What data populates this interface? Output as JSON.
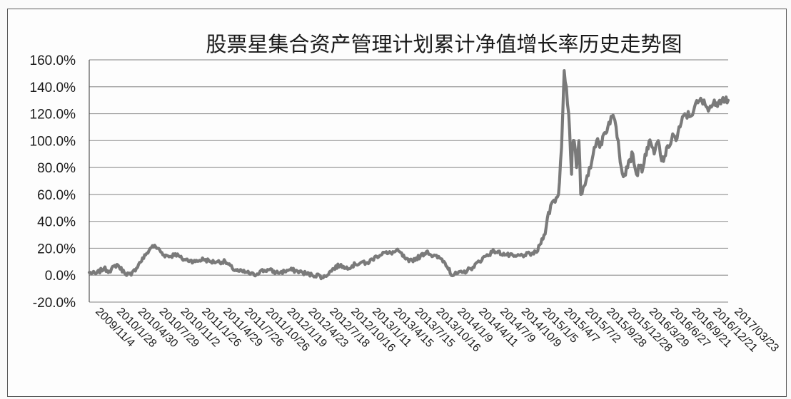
{
  "chart_data": {
    "type": "line",
    "title": "股票星集合资产管理计划累计净值增长率历史走势图",
    "xlabel": "",
    "ylabel": "",
    "ylim": [
      -20,
      160
    ],
    "y_unit": "%",
    "y_ticks": [
      "-20.0%",
      "0.0%",
      "20.0%",
      "40.0%",
      "60.0%",
      "80.0%",
      "100.0%",
      "120.0%",
      "140.0%",
      "160.0%"
    ],
    "x_ticks": [
      "2009/11/4",
      "2010/1/28",
      "2010/4/30",
      "2010/7/29",
      "2010/11/2",
      "2011/1/26",
      "2011/4/29",
      "2011/7/26",
      "2011/10/26",
      "2012/1/19",
      "2012/4/23",
      "2012/7/18",
      "2012/10/16",
      "2013/1/11",
      "2013/4/15",
      "2013/7/15",
      "2013/10/16",
      "2014/1/9",
      "2014/4/11",
      "2014/7/9",
      "2014/10/9",
      "2015/1/5",
      "2015/4/7",
      "2015/7/2",
      "2015/9/28",
      "2015/12/28",
      "2016/3/29",
      "2016/6/27",
      "2016/9/21",
      "2016/12/21",
      "2017/03/23"
    ],
    "grid": true,
    "legend": "none",
    "colors": {
      "line": "#7a7a7a",
      "grid": "#9a9a9a",
      "axis": "#555555",
      "text": "#1a1a1a"
    },
    "series": [
      {
        "x": [
          "2009/11/4",
          "2009/12/1",
          "2010/1/5",
          "2010/1/28",
          "2010/3/1",
          "2010/4/1",
          "2010/4/30",
          "2010/5/31",
          "2010/6/30",
          "2010/7/29",
          "2010/8/20",
          "2010/9/15",
          "2010/10/15",
          "2010/11/2",
          "2010/12/1",
          "2011/1/4",
          "2011/1/26",
          "2011/3/1",
          "2011/4/1",
          "2011/4/29",
          "2011/6/1",
          "2011/7/1",
          "2011/7/26",
          "2011/9/1",
          "2011/10/1",
          "2011/10/26",
          "2011/12/1",
          "2012/1/1",
          "2012/1/19",
          "2012/3/1",
          "2012/4/1",
          "2012/4/23",
          "2012/6/1",
          "2012/7/1",
          "2012/7/18",
          "2012/9/1",
          "2012/10/1",
          "2012/10/16",
          "2012/12/1",
          "2013/1/1",
          "2013/1/11",
          "2013/3/1",
          "2013/4/1",
          "2013/4/15",
          "2013/6/1",
          "2013/7/1",
          "2013/7/15",
          "2013/9/1",
          "2013/10/1",
          "2013/10/16",
          "2013/12/1",
          "2014/1/1",
          "2014/1/9",
          "2014/3/1",
          "2014/4/1",
          "2014/4/11",
          "2014/6/1",
          "2014/7/1",
          "2014/7/9",
          "2014/9/1",
          "2014/10/1",
          "2014/10/9",
          "2014/11/15",
          "2014/12/15",
          "2015/1/5",
          "2015/2/5",
          "2015/3/5",
          "2015/4/7",
          "2015/4/20",
          "2015/5/1",
          "2015/5/10",
          "2015/5/20",
          "2015/6/1",
          "2015/6/5",
          "2015/6/12",
          "2015/6/22",
          "2015/7/2",
          "2015/7/10",
          "2015/7/20",
          "2015/8/1",
          "2015/8/15",
          "2015/8/26",
          "2015/9/5",
          "2015/9/15",
          "2015/9/28",
          "2015/10/15",
          "2015/11/1",
          "2015/11/15",
          "2015/12/1",
          "2015/12/15",
          "2015/12/28",
          "2016/1/10",
          "2016/1/28",
          "2016/2/15",
          "2016/3/1",
          "2016/3/15",
          "2016/3/29",
          "2016/4/15",
          "2016/5/1",
          "2016/5/15",
          "2016/6/1",
          "2016/6/15",
          "2016/6/27",
          "2016/7/15",
          "2016/8/1",
          "2016/8/15",
          "2016/9/1",
          "2016/9/21",
          "2016/10/15",
          "2016/11/1",
          "2016/11/15",
          "2016/12/1",
          "2016/12/21",
          "2017/1/15",
          "2017/2/1",
          "2017/2/15",
          "2017/03/01",
          "2017/03/23"
        ],
        "values": [
          2,
          1,
          5,
          3,
          8,
          2,
          0,
          8,
          15,
          22,
          20,
          15,
          14,
          16,
          12,
          11,
          10,
          12,
          10,
          10,
          10,
          5,
          3,
          2,
          0,
          3,
          4,
          2,
          2,
          4,
          3,
          2,
          0,
          0,
          -2,
          5,
          8,
          5,
          8,
          10,
          8,
          14,
          17,
          16,
          18,
          12,
          10,
          14,
          18,
          15,
          12,
          5,
          0,
          2,
          5,
          6,
          14,
          17,
          18,
          15,
          14,
          14,
          15,
          16,
          17,
          30,
          52,
          60,
          95,
          152,
          140,
          120,
          75,
          95,
          100,
          80,
          100,
          60,
          65,
          70,
          80,
          85,
          95,
          100,
          95,
          105,
          110,
          118,
          115,
          100,
          80,
          75,
          85,
          90,
          75,
          80,
          80,
          95,
          98,
          90,
          100,
          85,
          88,
          95,
          105,
          100,
          110,
          120,
          118,
          125,
          128,
          130,
          125,
          126,
          128,
          130,
          132,
          130
        ],
        "mode": "cumulative daily NAV growth (dense noisy line)"
      }
    ]
  }
}
